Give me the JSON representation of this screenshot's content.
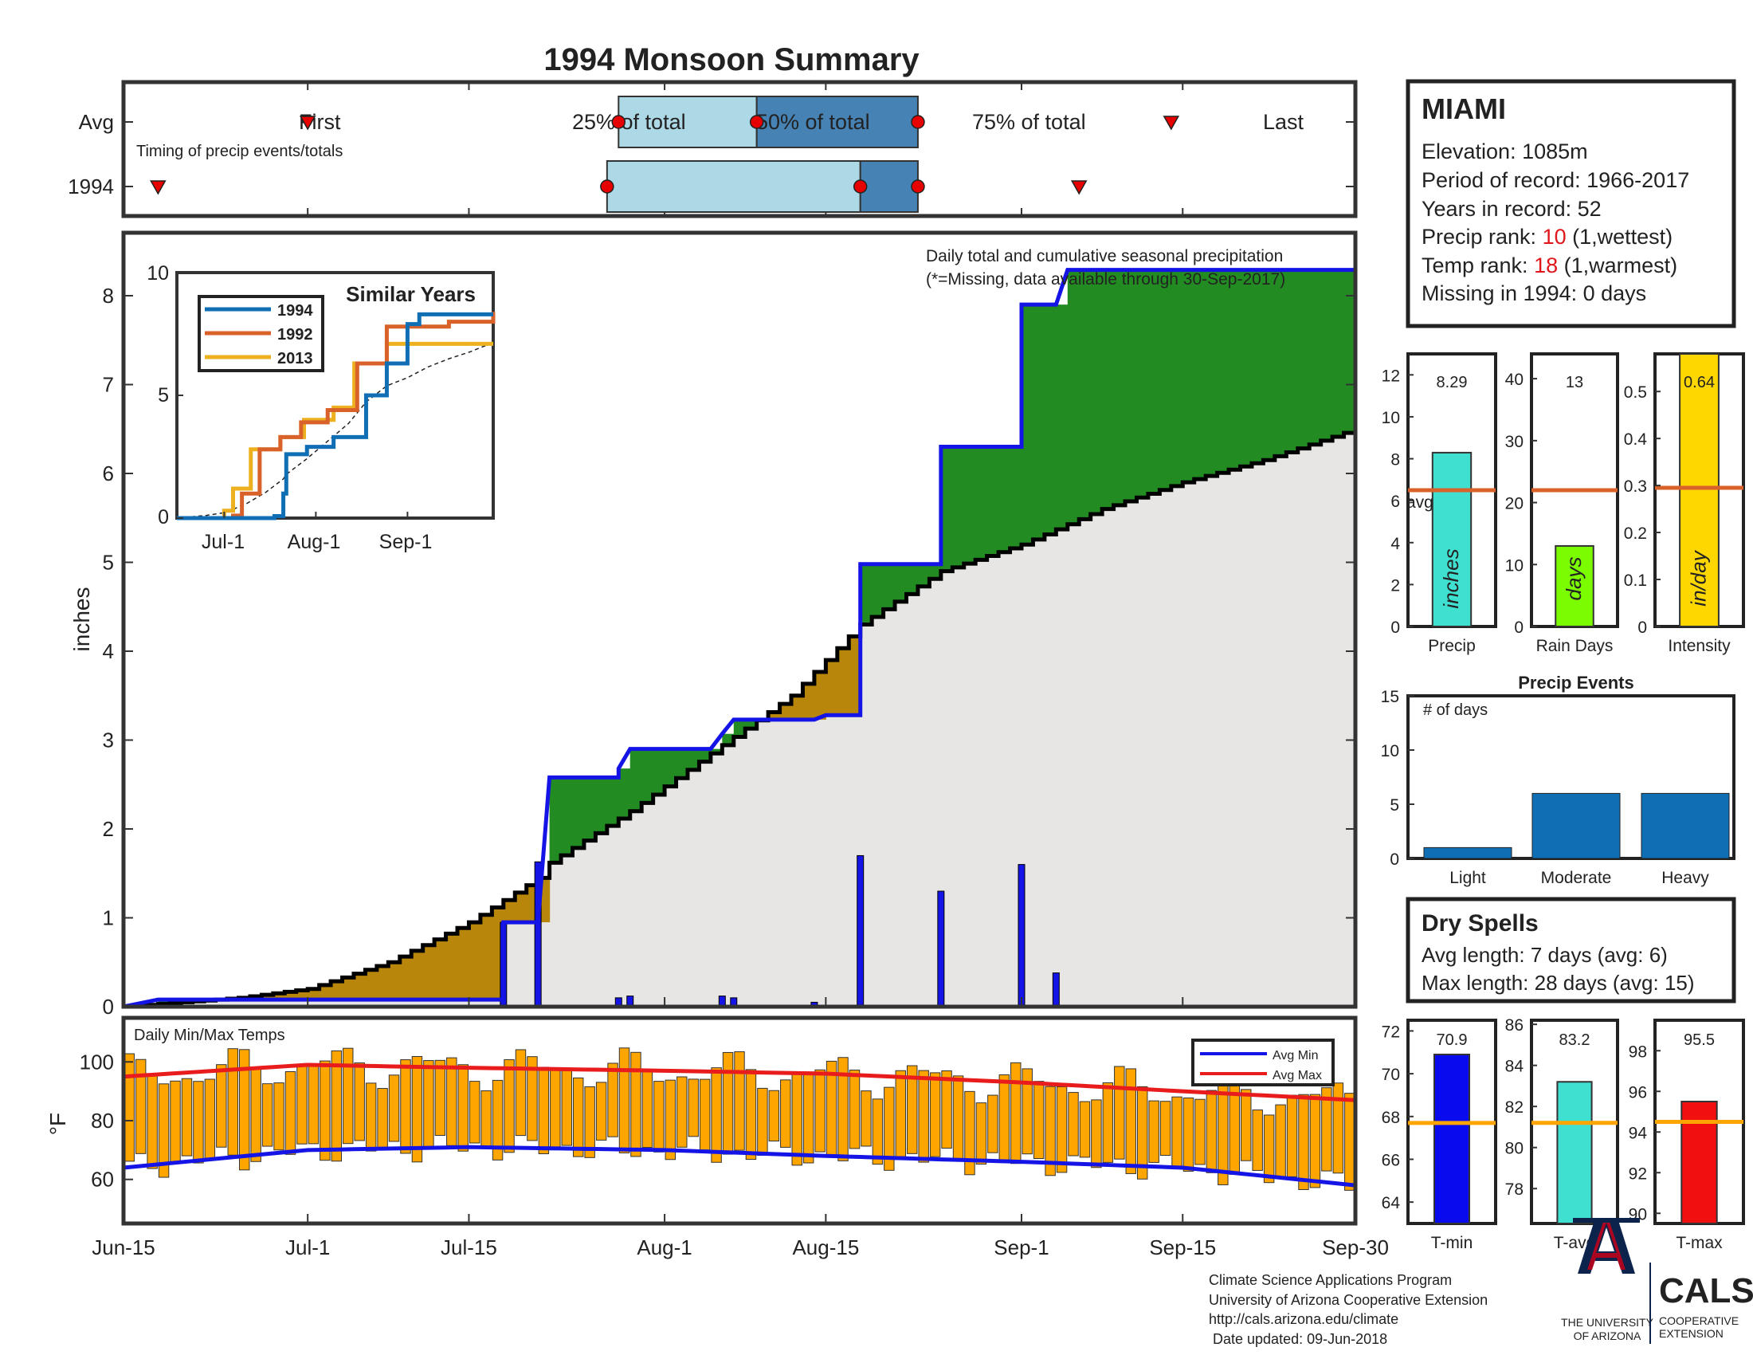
{
  "title": "1994 Monsoon Summary",
  "timing": {
    "row_labels": [
      "Avg",
      "1994"
    ],
    "caption": "Timing of precip events/totals",
    "first_label": "First",
    "last_label": "Last",
    "q25_label": "25% of total",
    "q50_label": "50% of total",
    "q75_label": "75% of total",
    "avg": {
      "first": "Jul-1",
      "q25": "Jul-28",
      "q50": "Aug-9",
      "q75": "Aug-23",
      "last": "Sep-14"
    },
    "year": {
      "first": "Jun-18",
      "q25": "Jul-27",
      "q50": "Aug-18",
      "q75": "Aug-23",
      "last": "Sep-6"
    }
  },
  "station": {
    "name": "MIAMI",
    "elevation": "Elevation: 1085m",
    "period": "Period of record: 1966-2017",
    "years": "Years in record: 52",
    "precip_rank_prefix": "Precip rank: ",
    "precip_rank_value": "10",
    "precip_rank_suffix": " (1,wettest)",
    "temp_rank_prefix": "Temp rank: ",
    "temp_rank_value": "18",
    "temp_rank_suffix": " (1,warmest)",
    "missing": "Missing in 1994: 0 days"
  },
  "main": {
    "ylabel": "inches",
    "note1": "Daily total and cumulative seasonal precipitation",
    "note2": "(*=Missing, data available through 30-Sep-2017)",
    "x_ticks": [
      "Jun-15",
      "Jul-1",
      "Jul-15",
      "Aug-1",
      "Aug-15",
      "Sep-1",
      "Sep-15",
      "Sep-30"
    ],
    "y_ticks": [
      "0",
      "1",
      "2",
      "3",
      "4",
      "5",
      "6",
      "7",
      "8"
    ]
  },
  "inset": {
    "title": "Similar Years",
    "x_ticks": [
      "Jul-1",
      "Aug-1",
      "Sep-1"
    ],
    "y_ticks": [
      "0",
      "5",
      "10"
    ]
  },
  "temps": {
    "label": "Daily Min/Max Temps",
    "ylabel": "°F",
    "y_ticks": [
      "60",
      "80",
      "100"
    ],
    "legend_min": "Avg Min",
    "legend_max": "Avg Max"
  },
  "bars": {
    "precip": {
      "value": "8.29",
      "label": "Precip",
      "unit": "inches",
      "avg_label": "avg",
      "ticks": [
        "0",
        "2",
        "4",
        "6",
        "8",
        "10",
        "12"
      ]
    },
    "raindays": {
      "value": "13",
      "label": "Rain Days",
      "unit": "days",
      "ticks": [
        "0",
        "10",
        "20",
        "30",
        "40"
      ]
    },
    "intensity": {
      "value": "0.64",
      "label": "Intensity",
      "unit": "in/day",
      "ticks": [
        "0",
        "0.1",
        "0.2",
        "0.3",
        "0.4",
        "0.5"
      ]
    }
  },
  "events": {
    "title": "Precip Events",
    "ylabel": "# of days",
    "ticks": [
      "0",
      "5",
      "10",
      "15"
    ],
    "categories": [
      "Light",
      "Moderate",
      "Heavy"
    ]
  },
  "dry_spells": {
    "title": "Dry Spells",
    "avg": "Avg length: 7 days (avg: 6)",
    "max": "Max length: 28 days (avg: 15)"
  },
  "tbars": {
    "tmin": {
      "value": "70.9",
      "label": "T-min",
      "ticks": [
        "64",
        "66",
        "68",
        "70",
        "72"
      ]
    },
    "tavg": {
      "value": "83.2",
      "label": "T-avg",
      "ticks": [
        "78",
        "80",
        "82",
        "84",
        "86"
      ]
    },
    "tmax": {
      "value": "95.5",
      "label": "T-max",
      "ticks": [
        "90",
        "92",
        "94",
        "96",
        "98"
      ]
    }
  },
  "footer": {
    "line1": "Climate Science Applications Program",
    "line2": "University of Arizona Cooperative Extension",
    "line3": "http://cals.arizona.edu/climate",
    "line4": " Date updated: 09-Jun-2018",
    "ua_line1": "THE UNIVERSITY",
    "ua_line2": "OF ARIZONA",
    "cals": "CALS",
    "cals_sub1": "COOPERATIVE",
    "cals_sub2": "EXTENSION"
  },
  "colors": {
    "title": "#e0161a",
    "cumulative_1994": "#1414e6",
    "avg_cumulative": "#000000",
    "above_avg_fill": "#228b22",
    "below_avg_fill": "#b8860b",
    "avg_area_fill": "#e8e6e5",
    "temp_bars": "#ffa500",
    "avg_min": "#1414e6",
    "avg_max": "#e81c1c",
    "precip_bar": "#40e0d0",
    "raindays_bar": "#7cfc00",
    "intensity_bar": "#ffd700",
    "avg_line": "#d9622b",
    "events_bar": "#0f6eb4",
    "tmin_bar": "#0a0aee",
    "tavg_bar": "#40e0d0",
    "tmax_bar": "#f01010",
    "temp_avg_line": "#ffa500",
    "dry_spells_text": "#8b4513",
    "light_blue_box": "#add8e6",
    "dark_blue_box": "#4682b4"
  },
  "chart_data": [
    {
      "type": "line",
      "title": "Daily total and cumulative seasonal precipitation",
      "ylabel": "inches",
      "x_range": [
        "Jun-15",
        "Sep-30"
      ],
      "ylim": [
        0,
        8.3
      ],
      "cumulative_1994": [
        [
          "Jun-15",
          0.0
        ],
        [
          "Jun-18",
          0.08
        ],
        [
          "Jul-18",
          0.08
        ],
        [
          "Jul-18",
          0.95
        ],
        [
          "Jul-21",
          0.95
        ],
        [
          "Jul-22",
          2.58
        ],
        [
          "Jul-28",
          2.58
        ],
        [
          "Jul-28",
          2.68
        ],
        [
          "Jul-29",
          2.9
        ],
        [
          "Aug-5",
          2.9
        ],
        [
          "Aug-6",
          3.07
        ],
        [
          "Aug-7",
          3.23
        ],
        [
          "Aug-14",
          3.23
        ],
        [
          "Aug-15",
          3.28
        ],
        [
          "Aug-18",
          3.28
        ],
        [
          "Aug-18",
          4.98
        ],
        [
          "Aug-25",
          4.98
        ],
        [
          "Aug-25",
          6.3
        ],
        [
          "Sep-1",
          6.3
        ],
        [
          "Sep-1",
          7.9
        ],
        [
          "Sep-4",
          7.9
        ],
        [
          "Sep-5",
          8.29
        ],
        [
          "Sep-30",
          8.29
        ]
      ],
      "avg_cumulative": [
        [
          "Jun-15",
          0.0
        ],
        [
          "Jun-25",
          0.1
        ],
        [
          "Jul-1",
          0.2
        ],
        [
          "Jul-8",
          0.5
        ],
        [
          "Jul-15",
          0.95
        ],
        [
          "Jul-21",
          1.45
        ],
        [
          "Jul-22",
          1.62
        ],
        [
          "Jul-29",
          2.2
        ],
        [
          "Aug-5",
          2.85
        ],
        [
          "Aug-12",
          3.5
        ],
        [
          "Aug-18",
          4.3
        ],
        [
          "Aug-25",
          4.9
        ],
        [
          "Sep-1",
          5.2
        ],
        [
          "Sep-8",
          5.6
        ],
        [
          "Sep-15",
          5.9
        ],
        [
          "Sep-22",
          6.15
        ],
        [
          "Sep-30",
          6.5
        ]
      ],
      "daily_1994": [
        [
          "Jul-18",
          0.95
        ],
        [
          "Jul-21",
          1.63
        ],
        [
          "Jul-28",
          0.1
        ],
        [
          "Jul-29",
          0.12
        ],
        [
          "Aug-6",
          0.12
        ],
        [
          "Aug-7",
          0.1
        ],
        [
          "Aug-14",
          0.05
        ],
        [
          "Aug-18",
          1.7
        ],
        [
          "Aug-25",
          1.3
        ],
        [
          "Sep-1",
          1.6
        ],
        [
          "Sep-4",
          0.38
        ]
      ]
    },
    {
      "type": "line",
      "title": "Similar Years",
      "x_range": [
        "Jun-15",
        "Sep-30"
      ],
      "ylim": [
        0,
        10
      ],
      "series": [
        {
          "name": "1994",
          "values": [
            [
              "Jun-15",
              0
            ],
            [
              "Jul-18",
              0.08
            ],
            [
              "Jul-21",
              1.0
            ],
            [
              "Jul-22",
              2.6
            ],
            [
              "Jul-29",
              2.9
            ],
            [
              "Aug-7",
              3.3
            ],
            [
              "Aug-18",
              5.0
            ],
            [
              "Aug-25",
              6.3
            ],
            [
              "Sep-1",
              7.9
            ],
            [
              "Sep-5",
              8.3
            ],
            [
              "Sep-30",
              8.3
            ]
          ]
        },
        {
          "name": "1992",
          "values": [
            [
              "Jun-15",
              0
            ],
            [
              "Jul-4",
              0.1
            ],
            [
              "Jul-7",
              1.0
            ],
            [
              "Jul-13",
              2.8
            ],
            [
              "Jul-20",
              3.3
            ],
            [
              "Jul-27",
              3.9
            ],
            [
              "Aug-5",
              4.4
            ],
            [
              "Aug-15",
              6.3
            ],
            [
              "Aug-25",
              7.8
            ],
            [
              "Sep-15",
              8.0
            ],
            [
              "Sep-30",
              8.4
            ]
          ]
        },
        {
          "name": "2013",
          "values": [
            [
              "Jun-15",
              0
            ],
            [
              "Jul-1",
              0.3
            ],
            [
              "Jul-4",
              1.2
            ],
            [
              "Jul-10",
              2.8
            ],
            [
              "Jul-20",
              3.3
            ],
            [
              "Jul-28",
              4.0
            ],
            [
              "Aug-7",
              4.5
            ],
            [
              "Aug-14",
              6.3
            ],
            [
              "Aug-25",
              7.1
            ],
            [
              "Sep-30",
              7.1
            ]
          ]
        }
      ]
    },
    {
      "type": "bar",
      "title": "Daily Min/Max Temps",
      "ylabel": "°F",
      "ylim": [
        45,
        115
      ],
      "series": [
        {
          "name": "Avg Min",
          "values": [
            [
              "Jun-15",
              64
            ],
            [
              "Jul-1",
              70
            ],
            [
              "Jul-15",
              71
            ],
            [
              "Aug-1",
              70
            ],
            [
              "Aug-15",
              68
            ],
            [
              "Sep-1",
              66
            ],
            [
              "Sep-15",
              64
            ],
            [
              "Sep-30",
              58
            ]
          ]
        },
        {
          "name": "Avg Max",
          "values": [
            [
              "Jun-15",
              95
            ],
            [
              "Jul-1",
              99
            ],
            [
              "Jul-15",
              98
            ],
            [
              "Aug-1",
              97
            ],
            [
              "Aug-15",
              96
            ],
            [
              "Sep-1",
              93
            ],
            [
              "Sep-15",
              90
            ],
            [
              "Sep-30",
              87
            ]
          ]
        }
      ]
    },
    {
      "type": "bar",
      "categories": [
        "Precip",
        "Rain Days",
        "Intensity"
      ],
      "values": [
        8.29,
        13,
        0.64
      ],
      "averages": [
        6.5,
        22,
        0.3
      ]
    },
    {
      "type": "bar",
      "title": "Precip Events",
      "ylabel": "# of days",
      "categories": [
        "Light",
        "Moderate",
        "Heavy"
      ],
      "values": [
        1,
        6,
        6
      ],
      "ylim": [
        0,
        15
      ]
    },
    {
      "type": "bar",
      "categories": [
        "T-min",
        "T-avg",
        "T-max"
      ],
      "values": [
        70.9,
        83.2,
        95.5
      ],
      "averages": [
        67.7,
        81.2,
        94.5
      ]
    }
  ]
}
